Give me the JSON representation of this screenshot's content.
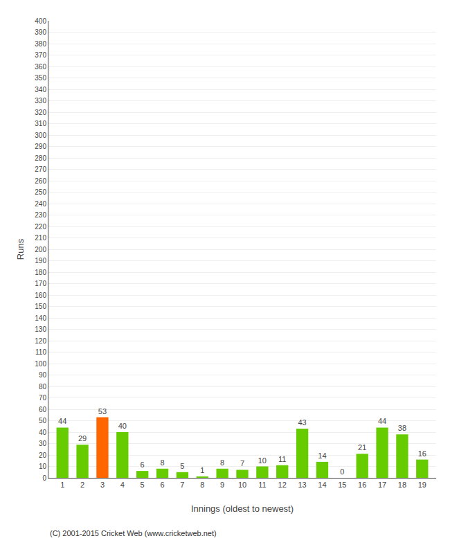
{
  "chart_data": {
    "type": "bar",
    "xlabel": "Innings (oldest to newest)",
    "ylabel": "Runs",
    "categories": [
      1,
      2,
      3,
      4,
      5,
      6,
      7,
      8,
      9,
      10,
      11,
      12,
      13,
      14,
      15,
      16,
      17,
      18,
      19
    ],
    "values": [
      44,
      29,
      53,
      40,
      6,
      8,
      5,
      1,
      8,
      7,
      10,
      11,
      43,
      14,
      0,
      21,
      44,
      38,
      16
    ],
    "colors": [
      "#66cc00",
      "#66cc00",
      "#ff6600",
      "#66cc00",
      "#66cc00",
      "#66cc00",
      "#66cc00",
      "#66cc00",
      "#66cc00",
      "#66cc00",
      "#66cc00",
      "#66cc00",
      "#66cc00",
      "#66cc00",
      "#66cc00",
      "#66cc00",
      "#66cc00",
      "#66cc00",
      "#66cc00"
    ],
    "ylim": [
      0,
      400
    ],
    "yticks": [
      0,
      10,
      20,
      30,
      40,
      50,
      60,
      70,
      80,
      90,
      100,
      110,
      120,
      130,
      140,
      150,
      160,
      170,
      180,
      190,
      200,
      210,
      220,
      230,
      240,
      250,
      260,
      270,
      280,
      290,
      300,
      310,
      320,
      330,
      340,
      350,
      360,
      370,
      380,
      390,
      400
    ],
    "grid": true,
    "data_labels": true,
    "annotations": [
      "(C) 2001-2015 Cricket Web (www.cricketweb.net)"
    ]
  }
}
